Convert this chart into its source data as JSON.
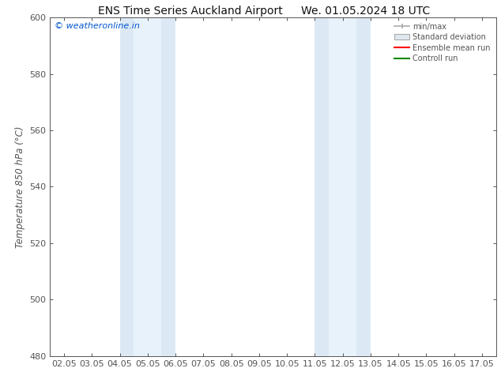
{
  "title_left": "ENS Time Series Auckland Airport",
  "title_right": "We. 01.05.2024 18 UTC",
  "ylabel": "Temperature 850 hPa (°C)",
  "xlim_min": 1.5,
  "xlim_max": 17.5,
  "ylim_min": 480,
  "ylim_max": 600,
  "yticks": [
    480,
    500,
    520,
    540,
    560,
    580,
    600
  ],
  "xtick_labels": [
    "02.05",
    "03.05",
    "04.05",
    "05.05",
    "06.05",
    "07.05",
    "08.05",
    "09.05",
    "10.05",
    "11.05",
    "12.05",
    "13.05",
    "14.05",
    "15.05",
    "16.05",
    "17.05"
  ],
  "xtick_positions": [
    2,
    3,
    4,
    5,
    6,
    7,
    8,
    9,
    10,
    11,
    12,
    13,
    14,
    15,
    16,
    17
  ],
  "shaded_bands": [
    {
      "x_start": 4.0,
      "x_end": 4.5,
      "color": "#dce9f5"
    },
    {
      "x_start": 4.5,
      "x_end": 5.5,
      "color": "#e8f2fb"
    },
    {
      "x_start": 5.5,
      "x_end": 6.0,
      "color": "#dce9f5"
    },
    {
      "x_start": 11.0,
      "x_end": 11.5,
      "color": "#dce9f5"
    },
    {
      "x_start": 11.5,
      "x_end": 12.5,
      "color": "#e8f2fb"
    },
    {
      "x_start": 12.5,
      "x_end": 13.0,
      "color": "#dce9f5"
    }
  ],
  "watermark_text": "© weatheronline.in",
  "watermark_color": "#0055cc",
  "legend_labels": [
    "min/max",
    "Standard deviation",
    "Ensemble mean run",
    "Controll run"
  ],
  "legend_colors": [
    "#aaaaaa",
    "#cccccc",
    "#ff0000",
    "#008800"
  ],
  "background_color": "#ffffff",
  "plot_bg_color": "#ffffff",
  "tick_color": "#555555",
  "title_fontsize": 10,
  "axis_fontsize": 8.5,
  "tick_fontsize": 8
}
